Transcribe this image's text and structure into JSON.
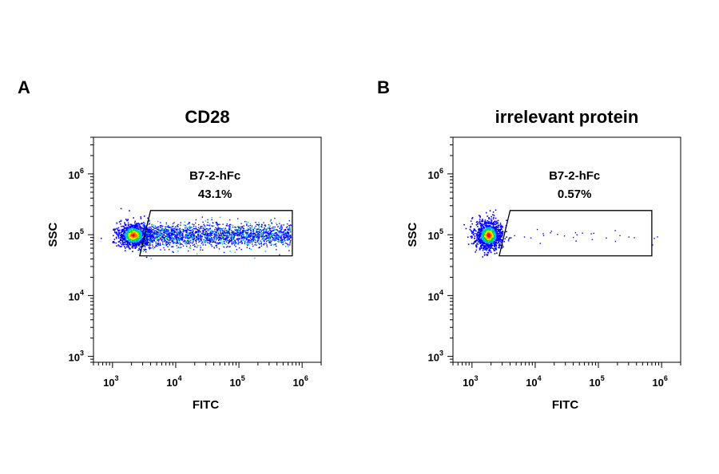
{
  "chart_data": [
    {
      "type": "scatter",
      "panel_letter": "A",
      "title": "CD28",
      "xlabel": "FITC",
      "ylabel": "SSC",
      "x_scale": "log",
      "y_scale": "log",
      "xlim": [
        500,
        2000000
      ],
      "ylim": [
        800,
        4000000
      ],
      "x_ticks": [
        {
          "base": "10",
          "exp": "3",
          "value": 1000
        },
        {
          "base": "10",
          "exp": "4",
          "value": 10000
        },
        {
          "base": "10",
          "exp": "5",
          "value": 100000
        },
        {
          "base": "10",
          "exp": "6",
          "value": 1000000
        }
      ],
      "y_ticks": [
        {
          "base": "10",
          "exp": "3",
          "value": 1000
        },
        {
          "base": "10",
          "exp": "4",
          "value": 10000
        },
        {
          "base": "10",
          "exp": "5",
          "value": 100000
        },
        {
          "base": "10",
          "exp": "6",
          "value": 1000000
        }
      ],
      "gate": {
        "name": "B7-2-hFc",
        "percent": "43.1%",
        "vertices": [
          [
            4000,
            250000
          ],
          [
            700000,
            250000
          ],
          [
            700000,
            45000
          ],
          [
            2700,
            45000
          ]
        ]
      },
      "population": {
        "center": [
          2100,
          100000
        ],
        "gated_fraction": 0.431,
        "gated_range_x": [
          3000,
          650000
        ]
      }
    },
    {
      "type": "scatter",
      "panel_letter": "B",
      "title": "irrelevant protein",
      "xlabel": "FITC",
      "ylabel": "SSC",
      "x_scale": "log",
      "y_scale": "log",
      "xlim": [
        500,
        2000000
      ],
      "ylim": [
        800,
        4000000
      ],
      "x_ticks": [
        {
          "base": "10",
          "exp": "3",
          "value": 1000
        },
        {
          "base": "10",
          "exp": "4",
          "value": 10000
        },
        {
          "base": "10",
          "exp": "5",
          "value": 100000
        },
        {
          "base": "10",
          "exp": "6",
          "value": 1000000
        }
      ],
      "y_ticks": [
        {
          "base": "10",
          "exp": "3",
          "value": 1000
        },
        {
          "base": "10",
          "exp": "4",
          "value": 10000
        },
        {
          "base": "10",
          "exp": "5",
          "value": 100000
        },
        {
          "base": "10",
          "exp": "6",
          "value": 1000000
        }
      ],
      "gate": {
        "name": "B7-2-hFc",
        "percent": "0.57%",
        "vertices": [
          [
            4000,
            250000
          ],
          [
            700000,
            250000
          ],
          [
            700000,
            45000
          ],
          [
            2700,
            45000
          ]
        ]
      },
      "population": {
        "center": [
          1800,
          100000
        ],
        "gated_fraction": 0.0057,
        "gated_range_x": [
          3000,
          1000000
        ]
      }
    }
  ],
  "colors": {
    "low": "#0000ff",
    "mid_low": "#00b4ff",
    "mid": "#00e000",
    "mid_high": "#ffe600",
    "high": "#ff8000",
    "peak": "#ff0000"
  }
}
